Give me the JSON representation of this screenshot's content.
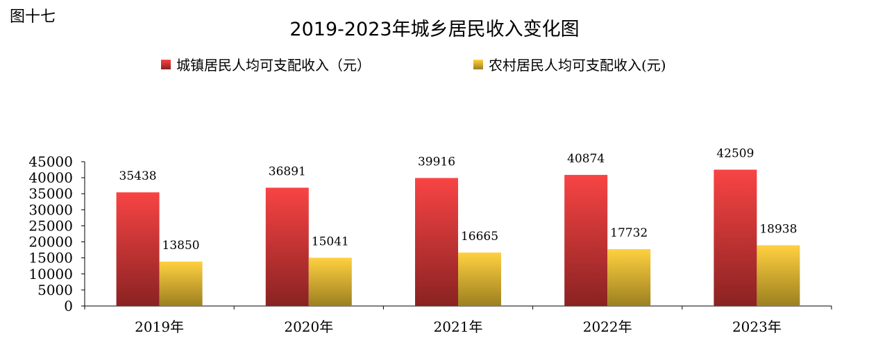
{
  "figure_label": "图十七",
  "chart_data": {
    "type": "bar",
    "title": "2019-2023年城乡居民收入变化图",
    "categories": [
      "2019年",
      "2020年",
      "2021年",
      "2022年",
      "2023年"
    ],
    "series": [
      {
        "name": "城镇居民人均可支配收入（元）",
        "values": [
          35438,
          36891,
          39916,
          40874,
          42509
        ],
        "color_top": "#f84444",
        "color_bottom": "#8a2222"
      },
      {
        "name": "农村居民人均可支配收入(元)",
        "values": [
          13850,
          15041,
          16665,
          17732,
          18938
        ],
        "color_top": "#ffd040",
        "color_bottom": "#9c8020"
      }
    ],
    "ylim": [
      0,
      45000
    ],
    "yticks": [
      0,
      5000,
      10000,
      15000,
      20000,
      25000,
      30000,
      35000,
      40000,
      45000
    ],
    "xlabel": "",
    "ylabel": "",
    "grid": false,
    "legend_position": "top"
  }
}
